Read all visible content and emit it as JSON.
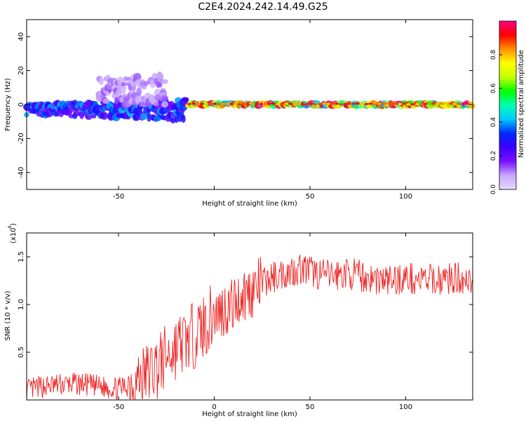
{
  "title": "C2E4.2024.242.14.49.G25",
  "chart_data": [
    {
      "type": "heatmap",
      "xlabel": "Height of straight line (km)",
      "ylabel": "Frequency (Hz)",
      "xlim": [
        -98,
        135
      ],
      "ylim": [
        -50,
        50
      ],
      "xticks": [
        -50,
        0,
        50,
        100
      ],
      "xtick_labels": [
        "-50",
        "",
        "50",
        "100"
      ],
      "yticks": [
        -40,
        -20,
        0,
        20,
        40
      ],
      "ytick_labels": [
        "-40",
        "-20",
        "0",
        "20",
        "40"
      ],
      "grid": false,
      "colorbar": {
        "label": "Normalized spectral amplitude",
        "range": [
          0,
          1
        ],
        "ticks": [
          0.0,
          0.2,
          0.4,
          0.6,
          0.8
        ],
        "tick_labels": [
          "0.0",
          "0.2",
          "0.4",
          "0.6",
          "0.8"
        ],
        "colormap": [
          "#e8d8ff",
          "#c6a8ff",
          "#7a10ff",
          "#3c00ff",
          "#0028ff",
          "#00c8ff",
          "#00ffb0",
          "#00ff00",
          "#c8ff00",
          "#ffff00",
          "#ff9000",
          "#ff0000",
          "#ff0080"
        ]
      },
      "description_of_signal": [
        {
          "x_range": [
            -98,
            -15
          ],
          "freq_center": -3,
          "freq_spread": 6,
          "amplitude": 0.3
        },
        {
          "x_range": [
            -60,
            -25
          ],
          "freq_center": 8,
          "freq_spread": 10,
          "amplitude": 0.1
        },
        {
          "x_range": [
            -13,
            135
          ],
          "freq_center": 0,
          "freq_spread": 2,
          "amplitude": 0.75
        }
      ]
    },
    {
      "type": "line",
      "xlabel": "Height of straight line (km)",
      "ylabel": "SNR (10 * v/v)",
      "y_multiplier_label": "(x10",
      "y_multiplier_exp": "4",
      "xlim": [
        -98,
        135
      ],
      "ylim": [
        0,
        1.75
      ],
      "xticks": [
        -50,
        0,
        50,
        100
      ],
      "xtick_labels": [
        "-50",
        "0",
        "50",
        "100"
      ],
      "yticks": [
        0.5,
        1.0,
        1.5
      ],
      "ytick_labels": [
        "0.5",
        "1.0",
        "1.5"
      ],
      "grid": false,
      "line_color": "#ee2222",
      "series": [
        {
          "x": [
            -98,
            -90,
            -80,
            -70,
            -60,
            -50,
            -45,
            -40,
            -35,
            -30,
            -25,
            -20,
            -15,
            -10,
            -5,
            0,
            5,
            10,
            15,
            20,
            25,
            30,
            35,
            40,
            45,
            50,
            55,
            60,
            70,
            80,
            90,
            100,
            110,
            120,
            130,
            135
          ],
          "y": [
            0.1,
            0.14,
            0.16,
            0.17,
            0.14,
            0.12,
            0.15,
            0.2,
            0.28,
            0.35,
            0.45,
            0.55,
            0.62,
            0.68,
            0.78,
            0.9,
            0.95,
            1.0,
            1.1,
            1.15,
            1.22,
            1.28,
            1.32,
            1.35,
            1.38,
            1.35,
            1.32,
            1.3,
            1.33,
            1.28,
            1.25,
            1.28,
            1.25,
            1.27,
            1.28,
            1.26
          ]
        }
      ]
    }
  ]
}
